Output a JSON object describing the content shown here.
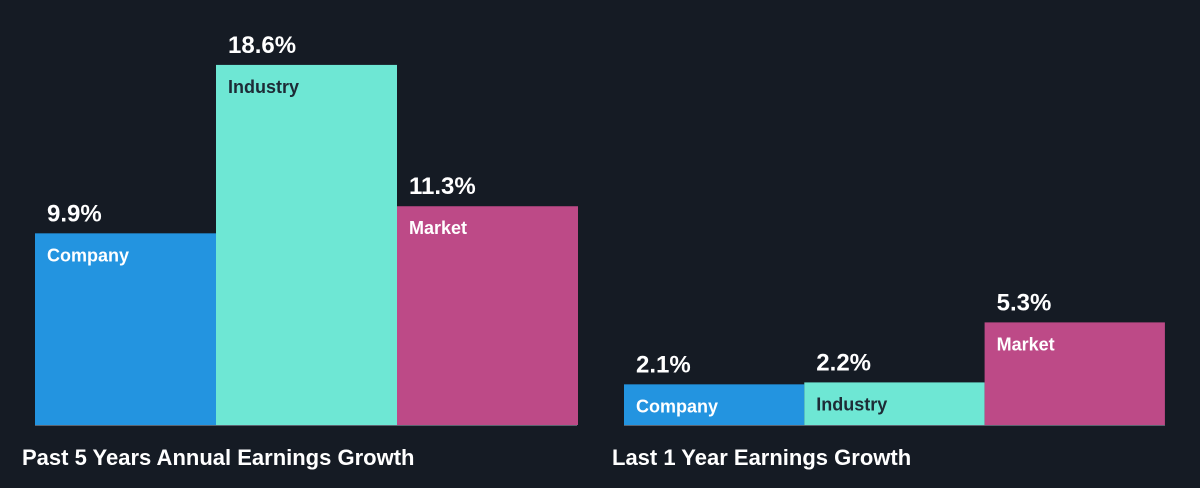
{
  "colors": {
    "background": "#151b24",
    "company": "#2394e0",
    "industry": "#6ee7d4",
    "market": "#bd4a87",
    "baseline": "#5b6470",
    "label_light": "#ffffff",
    "label_dark": "#1d2b36"
  },
  "chart_data": [
    {
      "type": "bar",
      "title": "Past 5 Years Annual Earnings Growth",
      "categories": [
        "Company",
        "Industry",
        "Market"
      ],
      "values": [
        9.9,
        18.6,
        11.3
      ],
      "value_labels": [
        "9.9%",
        "18.6%",
        "11.3%"
      ],
      "ylim": [
        0,
        20
      ],
      "grid": false,
      "legend": "none"
    },
    {
      "type": "bar",
      "title": "Last 1 Year Earnings Growth",
      "categories": [
        "Company",
        "Industry",
        "Market"
      ],
      "values": [
        2.1,
        2.2,
        5.3
      ],
      "value_labels": [
        "2.1%",
        "2.2%",
        "5.3%"
      ],
      "ylim": [
        0,
        20
      ],
      "grid": false,
      "legend": "none"
    }
  ]
}
